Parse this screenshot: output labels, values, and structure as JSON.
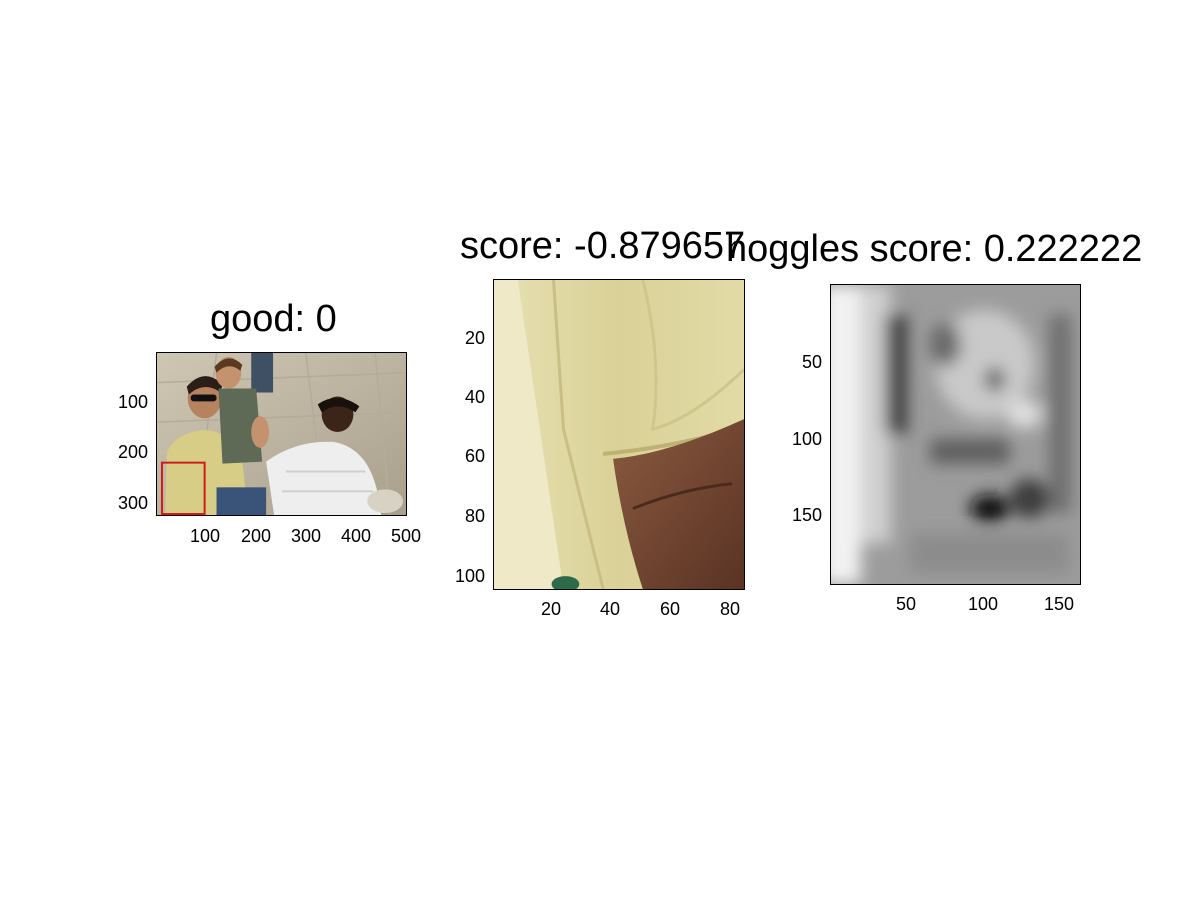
{
  "panels": [
    {
      "id": "scene",
      "title": "good: 0",
      "image_description": "street scene photo with seated people and a red detection box",
      "x_ticks": [
        "100",
        "200",
        "300",
        "400",
        "500"
      ],
      "y_ticks": [
        "100",
        "200",
        "300"
      ],
      "detection_box_color": "#d11a1a"
    },
    {
      "id": "crop",
      "title": "score: -0.879657",
      "image_description": "cropped patch showing a yellow shirt and an arm",
      "x_ticks": [
        "20",
        "40",
        "60",
        "80"
      ],
      "y_ticks": [
        "20",
        "40",
        "60",
        "80",
        "100"
      ]
    },
    {
      "id": "hoggles",
      "title": "hoggles score: 0.222222",
      "image_description": "grayscale HOG inverse visualization",
      "x_ticks": [
        "50",
        "100",
        "150"
      ],
      "y_ticks": [
        "50",
        "100",
        "150"
      ]
    }
  ]
}
